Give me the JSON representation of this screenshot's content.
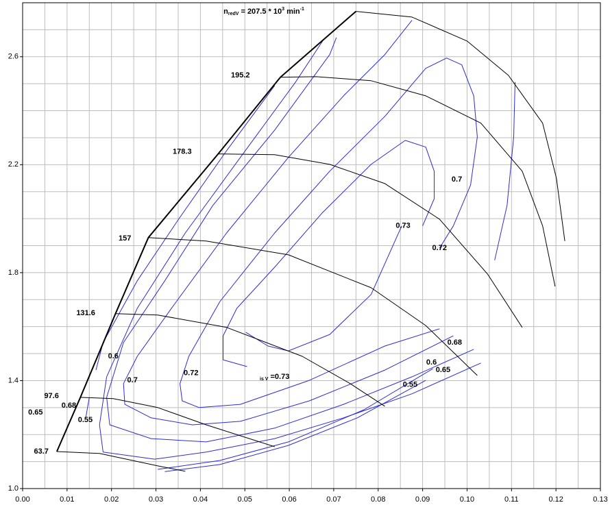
{
  "chart_data": {
    "type": "line",
    "title": {
      "base": "n",
      "sub": "redV",
      "text": " = 207.5 * 10",
      "sup": "3",
      "unit": " min",
      "unit_sup": "-1"
    },
    "xlim": [
      0,
      0.13
    ],
    "ylim": [
      1.0,
      2.8
    ],
    "xticks": [
      {
        "value": 0,
        "label": "0.00"
      },
      0.01,
      0.02,
      0.03,
      0.04,
      0.05,
      0.06,
      0.07,
      0.08,
      0.09,
      {
        "value": 0.1,
        "label": "0.10"
      },
      0.11,
      0.12,
      0.13
    ],
    "yticks": [
      {
        "value": 1.0,
        "label": "1.0"
      },
      1.4,
      1.8,
      2.2,
      2.6
    ],
    "xgrid": [
      0.005,
      0.015,
      0.025,
      0.035,
      0.045,
      0.055,
      0.065,
      0.075,
      0.085,
      0.095,
      0.105,
      0.115,
      0.125
    ],
    "ygrid": [
      1.1,
      1.2,
      1.3,
      1.5,
      1.6,
      1.7,
      1.9,
      2.0,
      2.1,
      2.3,
      2.4,
      2.5,
      2.7
    ],
    "grid": true,
    "surge_line": {
      "color": "#000000",
      "x": [
        0.0077,
        0.013,
        0.0209,
        0.0283,
        0.044,
        0.058,
        0.075
      ],
      "values": [
        1.137,
        1.338,
        1.648,
        1.93,
        2.24,
        2.524,
        2.768
      ]
    },
    "speed_lines": [
      {
        "color": "#000000",
        "x": [
          0.0077,
          0.0173,
          0.0304,
          0.0366
        ],
        "values": [
          1.137,
          1.13,
          1.084,
          1.064
        ]
      },
      {
        "color": "#000000",
        "x": [
          0.013,
          0.0204,
          0.0304,
          0.0413,
          0.0567
        ],
        "values": [
          1.338,
          1.333,
          1.3,
          1.236,
          1.155
        ]
      },
      {
        "color": "#000000",
        "x": [
          0.0209,
          0.0304,
          0.0459,
          0.0629,
          0.0737,
          0.0815
        ],
        "values": [
          1.648,
          1.643,
          1.597,
          1.49,
          1.389,
          1.305
        ]
      },
      {
        "color": "#000000",
        "x": [
          0.0283,
          0.0413,
          0.0598,
          0.0784,
          0.0907,
          0.1023
        ],
        "values": [
          1.93,
          1.917,
          1.866,
          1.744,
          1.604,
          1.419
        ]
      },
      {
        "color": "#000000",
        "x": [
          0.044,
          0.0567,
          0.0691,
          0.0815,
          0.0938,
          0.1046,
          0.1124
        ],
        "values": [
          2.24,
          2.237,
          2.201,
          2.13,
          1.998,
          1.795,
          1.597
        ]
      },
      {
        "color": "#000000",
        "x": [
          0.058,
          0.066,
          0.0784,
          0.0907,
          0.1031,
          0.1124,
          0.117,
          0.1198
        ],
        "values": [
          2.524,
          2.526,
          2.511,
          2.455,
          2.354,
          2.176,
          1.973,
          1.749
        ]
      },
      {
        "color": "#000000",
        "x": [
          0.075,
          0.0876,
          0.1,
          0.1093,
          0.117,
          0.1201,
          0.122
        ],
        "values": [
          2.768,
          2.747,
          2.658,
          2.531,
          2.354,
          2.15,
          1.917
        ]
      }
    ],
    "efficiency_contours": [
      {
        "color": "#2b2bd9",
        "x": [
          0.0853,
          0.0784,
          0.0691,
          0.0598,
          0.0552,
          0.0502
        ],
        "values": [
          1.973,
          1.719,
          1.571,
          1.51,
          1.528,
          1.579
        ]
      },
      {
        "color": "#2b2bd9",
        "x": [
          0.09,
          0.0926,
          0.0926,
          0.0907,
          0.0861,
          0.0784,
          0.0675,
          0.0567,
          0.0482,
          0.0451,
          0.0451,
          0.0505
        ],
        "values": [
          1.973,
          2.074,
          2.176,
          2.265,
          2.29,
          2.201,
          2.023,
          1.82,
          1.668,
          1.566,
          1.477,
          1.452
        ]
      },
      {
        "color": "#2b2bd9",
        "x": [
          0.0938,
          0.0969,
          0.1008,
          0.1023,
          0.1015,
          0.0988,
          0.0954,
          0.0907,
          0.0815,
          0.0691,
          0.0567,
          0.0444,
          0.0374,
          0.0354,
          0.0359,
          0.0397,
          0.049,
          0.0645,
          0.0815,
          0.0938
        ],
        "values": [
          1.891,
          1.973,
          2.125,
          2.303,
          2.455,
          2.57,
          2.595,
          2.557,
          2.379,
          2.176,
          1.947,
          1.693,
          1.49,
          1.389,
          1.325,
          1.3,
          1.312,
          1.401,
          1.528,
          1.592
        ]
      },
      {
        "color": "#2b2bd9",
        "x": [
          0.0969,
          0.0815,
          0.0645,
          0.049,
          0.0382,
          0.0289,
          0.023,
          0.0227,
          0.0258,
          0.0335,
          0.0459,
          0.0598,
          0.0722,
          0.0815,
          0.0876
        ],
        "values": [
          1.566,
          1.439,
          1.325,
          1.249,
          1.236,
          1.262,
          1.312,
          1.389,
          1.49,
          1.668,
          1.947,
          2.227,
          2.455,
          2.608,
          2.735
        ]
      },
      {
        "color": "#2b2bd9",
        "x": [
          0.1108,
          0.1105,
          0.109,
          0.1062
        ],
        "values": [
          2.506,
          2.303,
          2.049,
          1.846
        ]
      },
      {
        "color": "#2b2bd9",
        "x": [
          0.1015,
          0.0876,
          0.0722,
          0.0567,
          0.0413,
          0.0289,
          0.0196,
          0.0189,
          0.0227,
          0.032,
          0.0428,
          0.0567,
          0.0691,
          0.0706
        ],
        "values": [
          1.516,
          1.414,
          1.312,
          1.224,
          1.173,
          1.185,
          1.236,
          1.338,
          1.541,
          1.77,
          2.049,
          2.328,
          2.608,
          2.671
        ]
      },
      {
        "color": "#2b2bd9",
        "x": [
          0.1031,
          0.0876,
          0.0722,
          0.0567,
          0.0413,
          0.0297,
          0.0181,
          0.0173,
          0.0189,
          0.0258,
          0.0366,
          0.049,
          0.0614,
          0.0675
        ],
        "values": [
          1.465,
          1.351,
          1.262,
          1.185,
          1.135,
          1.109,
          1.135,
          1.236,
          1.414,
          1.668,
          1.947,
          2.227,
          2.506,
          2.658
        ]
      },
      {
        "color": "#2b2bd9",
        "x": [
          0.0923,
          0.0768,
          0.0598,
          0.0444,
          0.0304
        ],
        "values": [
          1.444,
          1.292,
          1.173,
          1.104,
          1.071
        ]
      },
      {
        "color": "#2b2bd9",
        "x": [
          0.0165,
          0.0181,
          0.0258,
          0.0351,
          0.0459,
          0.0567
        ],
        "values": [
          1.439,
          1.541,
          1.77,
          1.998,
          2.252,
          2.493
        ]
      },
      {
        "color": "#2b2bd9",
        "x": [
          0.0907,
          0.0753,
          0.0598,
          0.0444,
          0.032
        ],
        "values": [
          1.401,
          1.262,
          1.16,
          1.089,
          1.063
        ]
      },
      {
        "color": "#2b2bd9",
        "x": [
          0.0142,
          0.015
        ],
        "values": [
          1.262,
          1.338
        ]
      }
    ],
    "annotations": [
      {
        "text": "63.7",
        "x": 0.0042,
        "y": 1.137
      },
      {
        "text": "97.6",
        "x": 0.0065,
        "y": 1.343
      },
      {
        "text": "131.6",
        "x": 0.0142,
        "y": 1.65
      },
      {
        "text": "157",
        "x": 0.023,
        "y": 1.927
      },
      {
        "text": "178.3",
        "x": 0.0359,
        "y": 2.247
      },
      {
        "text": "195.2",
        "x": 0.049,
        "y": 2.531
      },
      {
        "text": "0.65",
        "x": 0.0029,
        "y": 1.282
      },
      {
        "text": "0.68",
        "x": 0.0104,
        "y": 1.307
      },
      {
        "text": "0.55",
        "x": 0.0141,
        "y": 1.254
      },
      {
        "text": "0.6",
        "x": 0.0204,
        "y": 1.49
      },
      {
        "text": "0.7",
        "x": 0.0247,
        "y": 1.401
      },
      {
        "text": "0.72",
        "x": 0.0379,
        "y": 1.427
      },
      {
        "text": "0.73",
        "x": 0.0856,
        "y": 1.973
      },
      {
        "text": "0.72",
        "x": 0.0938,
        "y": 1.891
      },
      {
        "text": "0.7",
        "x": 0.0977,
        "y": 2.145
      },
      {
        "text": "0.68",
        "x": 0.0972,
        "y": 1.541
      },
      {
        "text": "0.6",
        "x": 0.092,
        "y": 1.467
      },
      {
        "text": "0.65",
        "x": 0.0946,
        "y": 1.439
      },
      {
        "text": "0.55",
        "x": 0.0872,
        "y": 1.384
      },
      {
        "sub": "is V",
        "text": " =0.73",
        "x": 0.0567,
        "y": 1.414
      }
    ]
  }
}
